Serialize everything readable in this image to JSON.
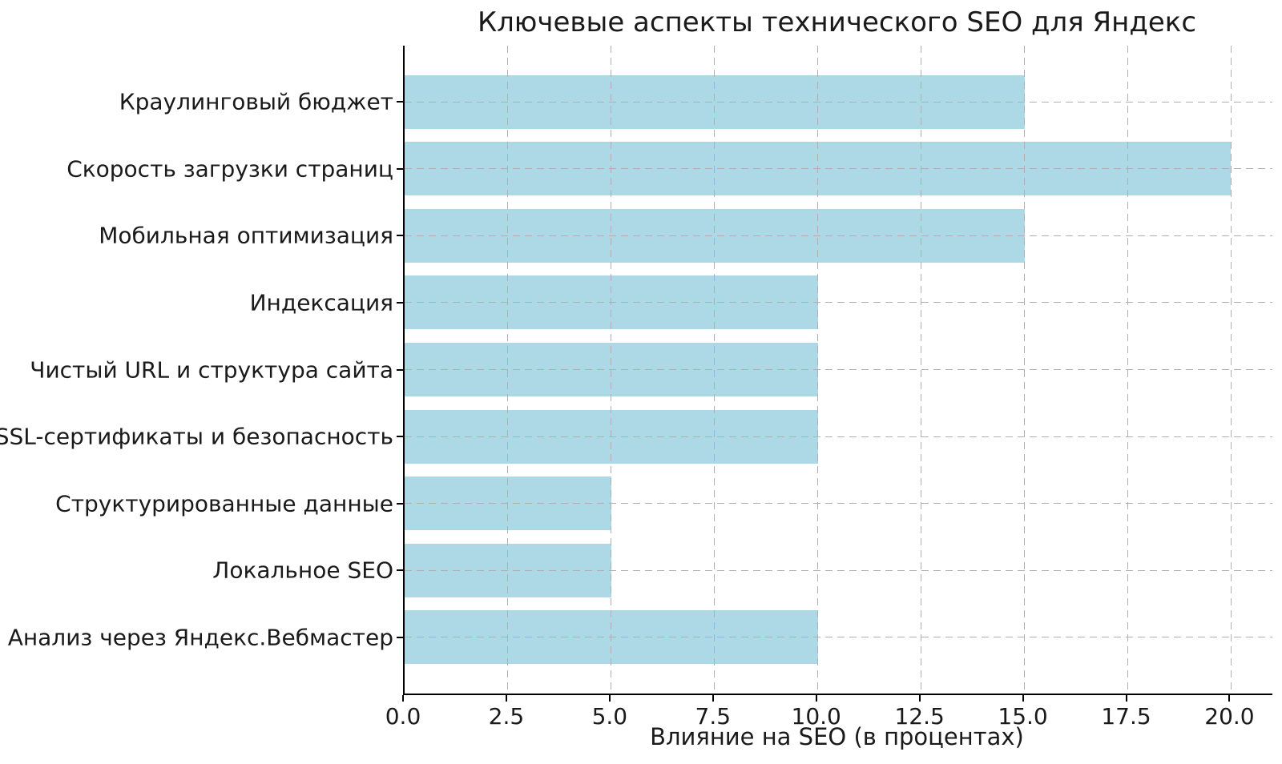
{
  "chart_data": {
    "type": "bar",
    "orientation": "horizontal",
    "title": "Ключевые аспекты технического SEO для Яндекс",
    "xlabel": "Влияние на SEO (в процентах)",
    "categories": [
      "Краулинговый бюджет",
      "Скорость загрузки страниц",
      "Мобильная оптимизация",
      "Индексация",
      "Чистый URL и структура сайта",
      "SSL-сертификаты и безопасность",
      "Структурированные данные",
      "Локальное SEO",
      "Анализ через Яндекс.Вебмастер"
    ],
    "values": [
      15,
      20,
      15,
      10,
      10,
      10,
      5,
      5,
      10
    ],
    "xlim": [
      0,
      21
    ],
    "xticks": [
      0.0,
      2.5,
      5.0,
      7.5,
      10.0,
      12.5,
      15.0,
      17.5,
      20.0
    ],
    "xtick_labels": [
      "0.0",
      "2.5",
      "5.0",
      "7.5",
      "10.0",
      "12.5",
      "15.0",
      "17.5",
      "20.0"
    ],
    "grid": "dashed, gray, drawn above bars, at x-ticks and category centers",
    "legend": null,
    "colors": {
      "bar": "#ADD8E6",
      "grid": "#b0b0b0",
      "axis": "#000000",
      "text": "#1a1a1a",
      "background": "#ffffff"
    }
  }
}
